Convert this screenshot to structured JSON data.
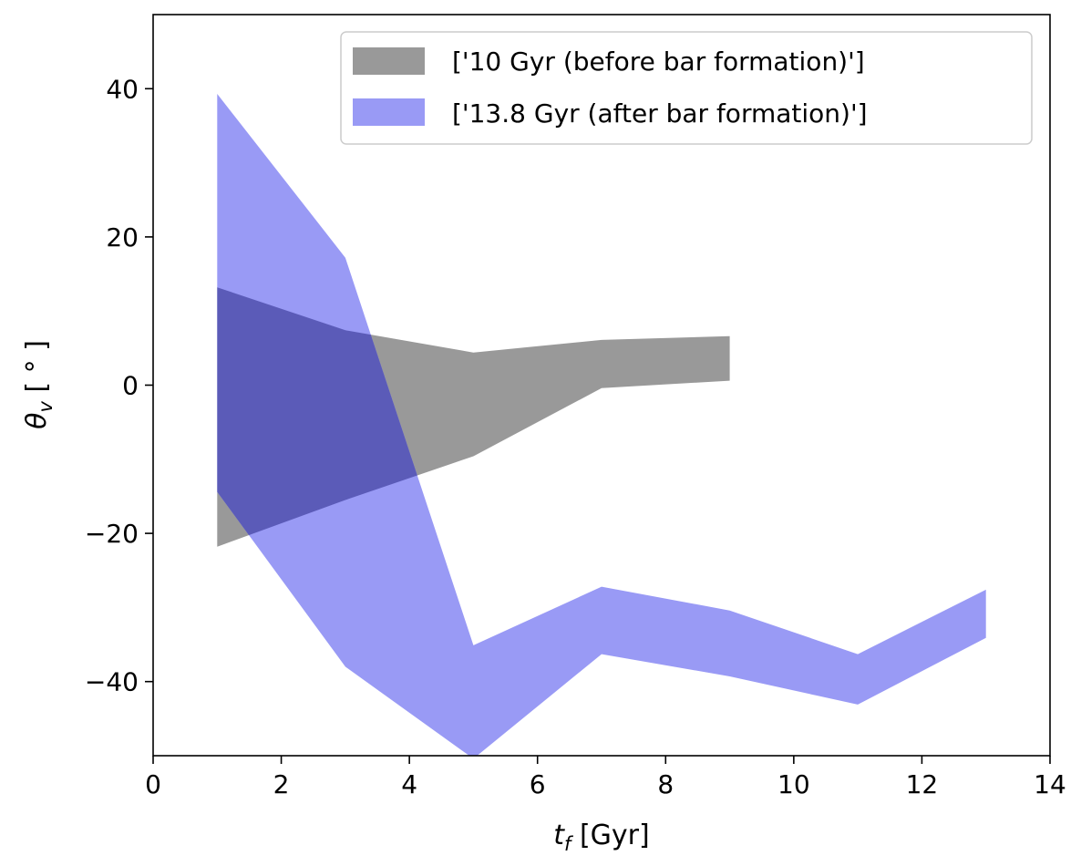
{
  "chart_data": {
    "type": "area",
    "title": "",
    "xlabel": "t_f [Gyr]",
    "xlabel_main": "t",
    "xlabel_sub": "f",
    "xlabel_rest": " [Gyr]",
    "ylabel": "θ_v [ ° ]",
    "ylabel_main": "θ",
    "ylabel_sub": "v",
    "ylabel_rest": " [ ° ]",
    "xlim": [
      0,
      14
    ],
    "ylim": [
      -50,
      50
    ],
    "xticks": [
      0,
      2,
      4,
      6,
      8,
      10,
      12,
      14
    ],
    "yticks": [
      -40,
      -20,
      0,
      20,
      40
    ],
    "xtick_labels": [
      "0",
      "2",
      "4",
      "6",
      "8",
      "10",
      "12",
      "14"
    ],
    "ytick_labels": [
      "−40",
      "−20",
      "0",
      "20",
      "40"
    ],
    "grid": false,
    "legend_position": "top-right",
    "series": [
      {
        "name": "['10 Gyr (before bar formation)']",
        "color": "#999999",
        "x": [
          1,
          3,
          5,
          7,
          9
        ],
        "lower": [
          -21.8,
          -15.5,
          -9.6,
          -0.4,
          0.6
        ],
        "upper": [
          13.2,
          7.4,
          4.4,
          6.1,
          6.6
        ]
      },
      {
        "name": "['13.8 Gyr (after bar formation)']",
        "color": "#999af5",
        "x": [
          1,
          3,
          5,
          7,
          9,
          11,
          13
        ],
        "lower": [
          -14.4,
          -38.0,
          -50.4,
          -36.3,
          -39.3,
          -43.1,
          -34.1
        ],
        "upper": [
          39.3,
          17.2,
          -35.1,
          -27.2,
          -30.4,
          -36.3,
          -27.6
        ]
      }
    ]
  }
}
